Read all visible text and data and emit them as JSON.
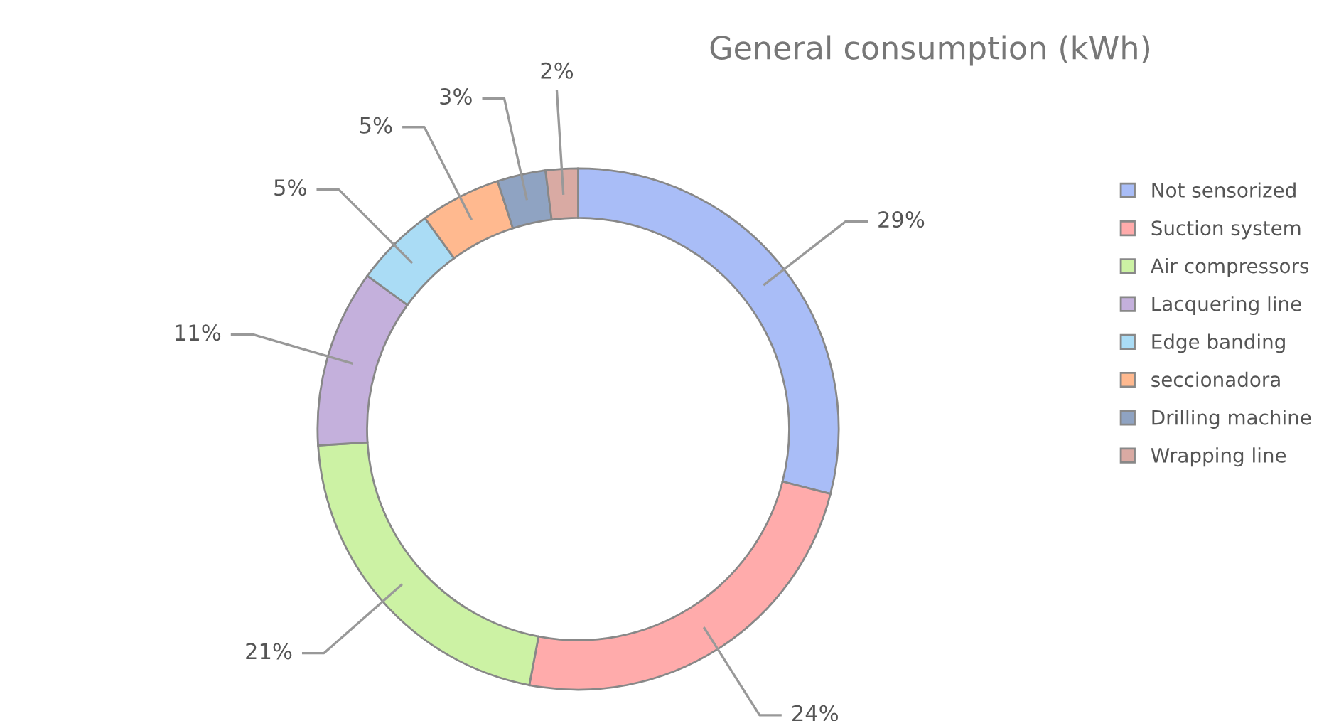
{
  "chart_data": {
    "type": "donut",
    "title": "General consumption (kWh)",
    "categories": [
      "Not sensorized",
      "Suction system",
      "Air compressors",
      "Lacquering line",
      "Edge banding",
      "seccionadora",
      "Drilling machine",
      "Wrapping line"
    ],
    "values": [
      29,
      24,
      21,
      11,
      5,
      5,
      3,
      2
    ],
    "colors": [
      "#a9bdf7",
      "#ffabab",
      "#ccf2a4",
      "#c4b0dc",
      "#aadcf5",
      "#ffb98f",
      "#8fa3c2",
      "#d9aaa3"
    ],
    "value_labels": [
      "29%",
      "24%",
      "21%",
      "11%",
      "5%",
      "5%",
      "3%",
      "2%"
    ],
    "legend": "right"
  }
}
